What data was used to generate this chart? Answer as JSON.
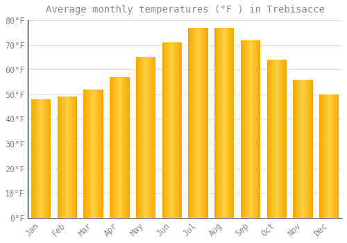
{
  "title": "Average monthly temperatures (°F ) in Trebisacce",
  "months": [
    "Jan",
    "Feb",
    "Mar",
    "Apr",
    "May",
    "Jun",
    "Jul",
    "Aug",
    "Sep",
    "Oct",
    "Nov",
    "Dec"
  ],
  "values": [
    48,
    49,
    52,
    57,
    65,
    71,
    77,
    77,
    72,
    64,
    56,
    50
  ],
  "bar_color_center": "#FFD040",
  "bar_color_edge": "#F5A800",
  "background_color": "#FFFFFF",
  "grid_color": "#E0E0E0",
  "text_color": "#888888",
  "spine_color": "#333333",
  "ylim": [
    0,
    80
  ],
  "yticks": [
    0,
    10,
    20,
    30,
    40,
    50,
    60,
    70,
    80
  ],
  "title_fontsize": 10,
  "tick_fontsize": 8.5
}
